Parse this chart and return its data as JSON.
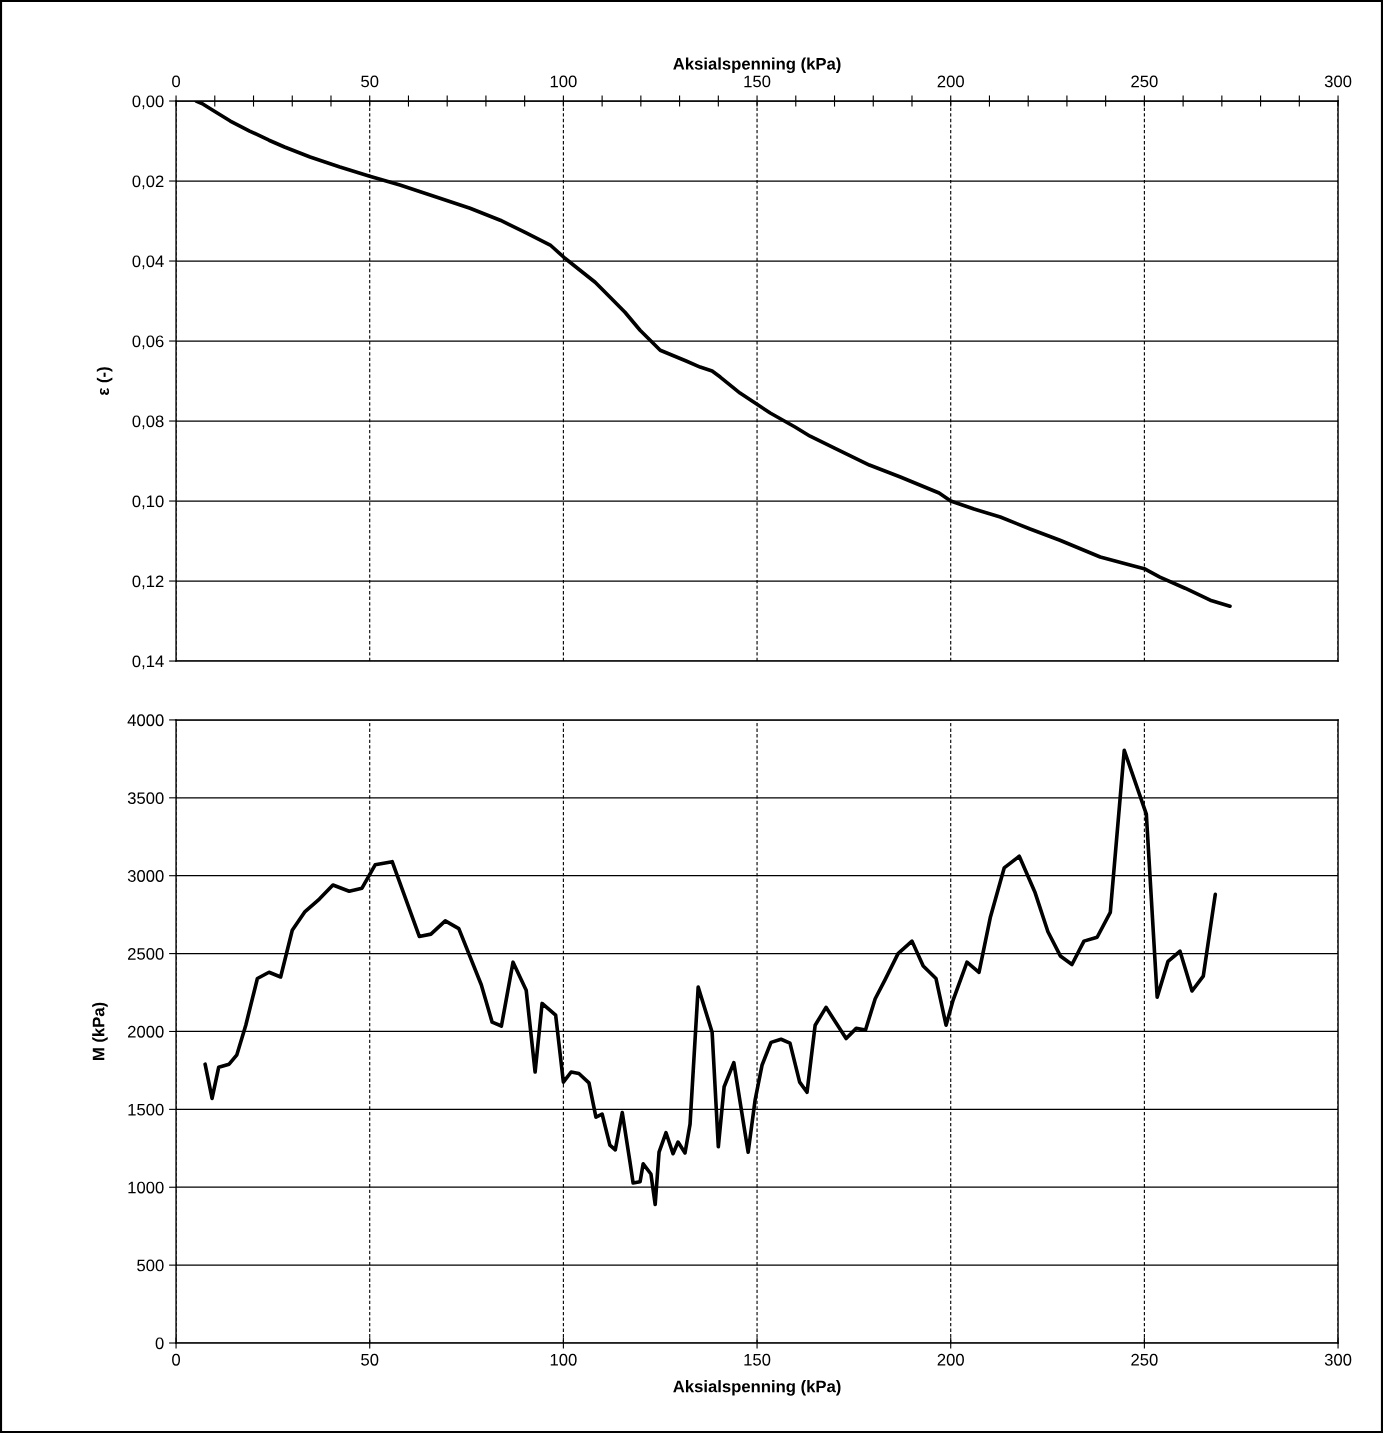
{
  "chart_data": [
    {
      "type": "line",
      "xlabel": "Aksialspenning (kPa)",
      "ylabel": "ε (-)",
      "grid": true,
      "legend": false,
      "marker": "none",
      "line_style": "solid",
      "xlim": [
        0,
        300
      ],
      "xticks": [
        0,
        {
          "value": 10,
          "label": null
        },
        {
          "value": 20,
          "label": null
        },
        {
          "value": 30,
          "label": null
        },
        {
          "value": 40,
          "label": null
        },
        50,
        {
          "value": 60,
          "label": null
        },
        {
          "value": 70,
          "label": null
        },
        {
          "value": 80,
          "label": null
        },
        {
          "value": 90,
          "label": null
        },
        100,
        {
          "value": 110,
          "label": null
        },
        {
          "value": 120,
          "label": null
        },
        {
          "value": 130,
          "label": null
        },
        {
          "value": 140,
          "label": null
        },
        150,
        {
          "value": 160,
          "label": null
        },
        {
          "value": 170,
          "label": null
        },
        {
          "value": 180,
          "label": null
        },
        {
          "value": 190,
          "label": null
        },
        200,
        {
          "value": 210,
          "label": null
        },
        {
          "value": 220,
          "label": null
        },
        {
          "value": 230,
          "label": null
        },
        {
          "value": 240,
          "label": null
        },
        250,
        {
          "value": 260,
          "label": null
        },
        {
          "value": 270,
          "label": null
        },
        {
          "value": 280,
          "label": null
        },
        {
          "value": 290,
          "label": null
        },
        300
      ],
      "ylim": [
        0.14,
        0
      ],
      "yticks": [
        {
          "value": 0,
          "label": "0,00"
        },
        {
          "value": 0.02,
          "label": "0,02"
        },
        {
          "value": 0.04,
          "label": "0,04"
        },
        {
          "value": 0.06,
          "label": "0,06"
        },
        {
          "value": 0.08,
          "label": "0,08"
        },
        {
          "value": 0.1,
          "label": "0,10"
        },
        {
          "value": 0.12,
          "label": "0,12"
        },
        {
          "value": 0.14,
          "label": "0,14"
        }
      ],
      "series": [
        {
          "color": "#000000",
          "x": [
            5.2,
            7,
            9.8,
            14,
            19,
            24,
            28,
            34.6,
            42.3,
            50,
            57.8,
            65.6,
            75.9,
            83.7,
            90,
            96.6,
            100.4,
            104.3,
            108.2,
            112,
            115.9,
            119.8,
            125,
            131.7,
            135.3,
            138.4,
            140.5,
            145.6,
            149.5,
            153.4,
            159.8,
            163.7,
            170,
            179,
            187,
            197,
            200,
            206,
            212.8,
            220.5,
            228.2,
            238.6,
            246.3,
            250.2,
            254,
            260.5,
            267,
            272.1
          ],
          "values": [
            0,
            0.0008,
            0.0025,
            0.005,
            0.0075,
            0.0098,
            0.0115,
            0.014,
            0.0165,
            0.0188,
            0.021,
            0.0235,
            0.0268,
            0.0298,
            0.0328,
            0.036,
            0.0393,
            0.0423,
            0.0453,
            0.049,
            0.0528,
            0.0573,
            0.0623,
            0.065,
            0.0665,
            0.0675,
            0.069,
            0.073,
            0.0755,
            0.078,
            0.0815,
            0.0838,
            0.0868,
            0.091,
            0.094,
            0.098,
            0.1,
            0.102,
            0.104,
            0.107,
            0.1098,
            0.114,
            0.116,
            0.117,
            0.119,
            0.1218,
            0.1248,
            0.1263
          ]
        }
      ]
    },
    {
      "type": "line",
      "xlabel": "Aksialspenning (kPa)",
      "ylabel": "M (kPa)",
      "grid": true,
      "legend": false,
      "marker": "none",
      "line_style": "solid",
      "xlim": [
        0,
        300
      ],
      "xticks": [
        0,
        50,
        100,
        150,
        200,
        250,
        300
      ],
      "ylim": [
        0,
        4000
      ],
      "yticks": [
        0,
        500,
        1000,
        1500,
        2000,
        2500,
        3000,
        3500,
        4000
      ],
      "series": [
        {
          "color": "#000000",
          "x": [
            7.5,
            9.3,
            11,
            13.7,
            15.7,
            18,
            21,
            24,
            27,
            30,
            33.3,
            37,
            40.5,
            44.7,
            48,
            51.4,
            55.8,
            62.8,
            65.8,
            69.5,
            73,
            78.8,
            81.6,
            84,
            87,
            90.4,
            92.7,
            94.5,
            98,
            100,
            102,
            104,
            106.6,
            108.4,
            110,
            112,
            113.4,
            115.2,
            117.2,
            118,
            119.8,
            120.6,
            122.6,
            123.7,
            124.7,
            126.5,
            128.3,
            129.6,
            131.4,
            132.7,
            134.8,
            138.4,
            140,
            141.5,
            144,
            147.7,
            149.5,
            151.3,
            153.6,
            156.2,
            158.5,
            161,
            162.9,
            165,
            167.8,
            173,
            175.6,
            178,
            180.5,
            183,
            186.4,
            190,
            192.9,
            196.2,
            198.8,
            200.6,
            204.2,
            207.3,
            210.2,
            213.8,
            217.7,
            221.8,
            225.1,
            228.3,
            231.3,
            234.4,
            237.8,
            241.2,
            244.8,
            250.5,
            253.3,
            256.1,
            259.2,
            262.3,
            265.2,
            268.3
          ],
          "values": [
            1790,
            1570,
            1770,
            1790,
            1850,
            2040,
            2340,
            2380,
            2350,
            2650,
            2770,
            2850,
            2940,
            2900,
            2920,
            3070,
            3090,
            2610,
            2625,
            2710,
            2660,
            2300,
            2060,
            2035,
            2445,
            2265,
            1740,
            2180,
            2105,
            1675,
            1740,
            1730,
            1670,
            1450,
            1470,
            1270,
            1240,
            1480,
            1160,
            1027,
            1035,
            1150,
            1085,
            890,
            1225,
            1350,
            1215,
            1290,
            1220,
            1405,
            2285,
            1995,
            1260,
            1645,
            1800,
            1225,
            1560,
            1785,
            1930,
            1950,
            1925,
            1675,
            1610,
            2040,
            2155,
            1955,
            2020,
            2010,
            2210,
            2330,
            2500,
            2580,
            2420,
            2340,
            2040,
            2200,
            2445,
            2380,
            2730,
            3050,
            3125,
            2890,
            2640,
            2485,
            2430,
            2580,
            2605,
            2765,
            3805,
            3395,
            2220,
            2450,
            2515,
            2260,
            2355,
            2880
          ]
        }
      ]
    }
  ]
}
